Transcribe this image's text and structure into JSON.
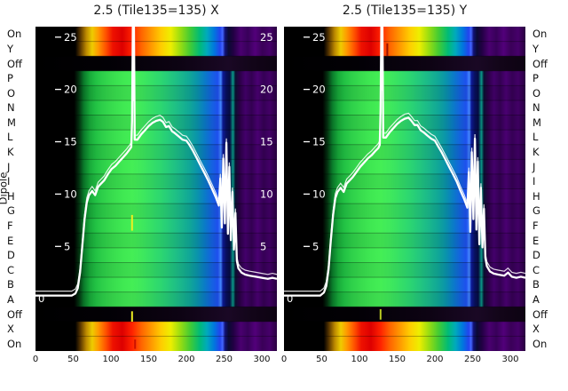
{
  "chart_data": {
    "type": "heatmap",
    "ylabel": "Dipole",
    "background": "#000000",
    "curve_color": "#ffffff",
    "xlim": [
      0,
      320
    ],
    "ylim": [
      -5,
      26
    ],
    "x_ticks": [
      0,
      50,
      100,
      150,
      200,
      250,
      300
    ],
    "y_tick_values": [
      25,
      20,
      15,
      10,
      5
    ],
    "zero_label": "0",
    "rows": [
      {
        "label": "On",
        "band": "edge"
      },
      {
        "label": "Y",
        "band": "edge"
      },
      {
        "label": "Off",
        "band": "off"
      },
      {
        "label": "P",
        "band": "main"
      },
      {
        "label": "O",
        "band": "main"
      },
      {
        "label": "N",
        "band": "main"
      },
      {
        "label": "M",
        "band": "main"
      },
      {
        "label": "L",
        "band": "main"
      },
      {
        "label": "K",
        "band": "main"
      },
      {
        "label": "J",
        "band": "main"
      },
      {
        "label": "I",
        "band": "main"
      },
      {
        "label": "H",
        "band": "main"
      },
      {
        "label": "G",
        "band": "main"
      },
      {
        "label": "F",
        "band": "main"
      },
      {
        "label": "E",
        "band": "main"
      },
      {
        "label": "D",
        "band": "main"
      },
      {
        "label": "C",
        "band": "main"
      },
      {
        "label": "B",
        "band": "main"
      },
      {
        "label": "A",
        "band": "main"
      },
      {
        "label": "Off",
        "band": "off"
      },
      {
        "label": "X",
        "band": "edge"
      },
      {
        "label": "On",
        "band": "edge"
      }
    ],
    "gradients": {
      "edge": [
        [
          0,
          "#000000"
        ],
        [
          0.165,
          "#000000"
        ],
        [
          0.185,
          "#553300"
        ],
        [
          0.21,
          "#bb8800"
        ],
        [
          0.235,
          "#eecc00"
        ],
        [
          0.26,
          "#ff9900"
        ],
        [
          0.29,
          "#ff5500"
        ],
        [
          0.32,
          "#ee1100"
        ],
        [
          0.36,
          "#dd0000"
        ],
        [
          0.4,
          "#ff2200"
        ],
        [
          0.44,
          "#ff6600"
        ],
        [
          0.48,
          "#ff9900"
        ],
        [
          0.52,
          "#ffcc00"
        ],
        [
          0.56,
          "#eeee00"
        ],
        [
          0.6,
          "#99dd11"
        ],
        [
          0.64,
          "#44cc33"
        ],
        [
          0.68,
          "#00bb77"
        ],
        [
          0.71,
          "#00aabb"
        ],
        [
          0.74,
          "#0077dd"
        ],
        [
          0.765,
          "#2244ee"
        ],
        [
          0.775,
          "#4466ff"
        ],
        [
          0.785,
          "#111177"
        ],
        [
          0.8,
          "#0a0a33"
        ],
        [
          0.82,
          "#220044"
        ],
        [
          0.85,
          "#4a0070"
        ],
        [
          0.88,
          "#38005a"
        ],
        [
          0.91,
          "#52007a"
        ],
        [
          0.94,
          "#3a0058"
        ],
        [
          0.97,
          "#46006a"
        ],
        [
          1,
          "#2a0040"
        ]
      ],
      "main": [
        [
          0,
          "#000000"
        ],
        [
          0.16,
          "#000000"
        ],
        [
          0.18,
          "#043311"
        ],
        [
          0.2,
          "#0a7a2a"
        ],
        [
          0.225,
          "#18aa3a"
        ],
        [
          0.25,
          "#22c244"
        ],
        [
          0.28,
          "#2ed04a"
        ],
        [
          0.32,
          "#38dd4e"
        ],
        [
          0.36,
          "#3fe852"
        ],
        [
          0.4,
          "#44ee55"
        ],
        [
          0.44,
          "#3fe95c"
        ],
        [
          0.48,
          "#35e066"
        ],
        [
          0.52,
          "#2cd671"
        ],
        [
          0.56,
          "#23c87e"
        ],
        [
          0.6,
          "#1ab88b"
        ],
        [
          0.64,
          "#10a698"
        ],
        [
          0.67,
          "#0a94ab"
        ],
        [
          0.7,
          "#0a7cc6"
        ],
        [
          0.73,
          "#1463e0"
        ],
        [
          0.755,
          "#1e50ee"
        ],
        [
          0.768,
          "#4488ff"
        ],
        [
          0.776,
          "#0d1a99"
        ],
        [
          0.79,
          "#081060"
        ],
        [
          0.805,
          "#060b44"
        ],
        [
          0.818,
          "#0a9988"
        ],
        [
          0.828,
          "#0a1133"
        ],
        [
          0.845,
          "#2a0045"
        ],
        [
          0.87,
          "#43006b"
        ],
        [
          0.895,
          "#330052"
        ],
        [
          0.92,
          "#4a0072"
        ],
        [
          0.945,
          "#360056"
        ],
        [
          0.97,
          "#420066"
        ],
        [
          1,
          "#2a0042"
        ]
      ],
      "off": [
        [
          0,
          "#000000"
        ],
        [
          0.3,
          "#020005"
        ],
        [
          0.6,
          "#0d0313"
        ],
        [
          0.8,
          "#1a0825"
        ],
        [
          0.9,
          "#120518"
        ],
        [
          1,
          "#0d0312"
        ]
      ]
    },
    "panels": [
      {
        "title": "2.5 (Tile135=135) X",
        "right_axis_labels": true,
        "marks": [
          {
            "x": 128,
            "v1": 6.5,
            "v2": 8,
            "color": "#eeee22"
          },
          {
            "x": 128,
            "v1": -2.2,
            "v2": -1.2,
            "color": "#eeee22"
          },
          {
            "x": 132,
            "v1": -4.8,
            "v2": -3.9,
            "color": "#cc1100"
          }
        ],
        "curve": [
          [
            0,
            0.3
          ],
          [
            30,
            0.3
          ],
          [
            48,
            0.3
          ],
          [
            53,
            0.5
          ],
          [
            56,
            1
          ],
          [
            59,
            2.5
          ],
          [
            62,
            5
          ],
          [
            65,
            7.6
          ],
          [
            68,
            9.2
          ],
          [
            71,
            9.9
          ],
          [
            75,
            10.3
          ],
          [
            79,
            9.9
          ],
          [
            83,
            10.7
          ],
          [
            87,
            11.0
          ],
          [
            91,
            11.3
          ],
          [
            96,
            11.9
          ],
          [
            101,
            12.4
          ],
          [
            106,
            12.7
          ],
          [
            111,
            13.1
          ],
          [
            116,
            13.5
          ],
          [
            121,
            13.9
          ],
          [
            125,
            14.3
          ],
          [
            127,
            14.5
          ],
          [
            128,
            17
          ],
          [
            129,
            26.5
          ],
          [
            130,
            19
          ],
          [
            130.5,
            26.5
          ],
          [
            131.5,
            15.2
          ],
          [
            135,
            15.2
          ],
          [
            140,
            15.7
          ],
          [
            145,
            16.1
          ],
          [
            150,
            16.5
          ],
          [
            155,
            16.8
          ],
          [
            160,
            17.0
          ],
          [
            165,
            17.1
          ],
          [
            169,
            16.9
          ],
          [
            173,
            16.4
          ],
          [
            177,
            16.5
          ],
          [
            181,
            16.0
          ],
          [
            185,
            15.8
          ],
          [
            190,
            15.5
          ],
          [
            195,
            15.2
          ],
          [
            200,
            15.1
          ],
          [
            204,
            14.7
          ],
          [
            209,
            14.1
          ],
          [
            214,
            13.4
          ],
          [
            219,
            12.7
          ],
          [
            224,
            12.0
          ],
          [
            229,
            11.3
          ],
          [
            234,
            10.5
          ],
          [
            239,
            9.7
          ],
          [
            243,
            8.9
          ],
          [
            245,
            11.5
          ],
          [
            247,
            6.8
          ],
          [
            249,
            13.4
          ],
          [
            251,
            7.2
          ],
          [
            253,
            14.9
          ],
          [
            255,
            6.2
          ],
          [
            257,
            12.6
          ],
          [
            259,
            5.6
          ],
          [
            261,
            10.2
          ],
          [
            263,
            4.7
          ],
          [
            265,
            8.2
          ],
          [
            267,
            3.6
          ],
          [
            269,
            2.9
          ],
          [
            273,
            2.5
          ],
          [
            278,
            2.3
          ],
          [
            284,
            2.2
          ],
          [
            292,
            2.1
          ],
          [
            300,
            2.0
          ],
          [
            308,
            1.9
          ],
          [
            314,
            2.0
          ],
          [
            320,
            1.9
          ]
        ]
      },
      {
        "title": "2.5 (Tile135=135) Y",
        "right_axis_labels": false,
        "marks": [
          {
            "x": 137,
            "v1": 23.2,
            "v2": 24.4,
            "color": "#991100"
          },
          {
            "x": 128,
            "v1": -2.0,
            "v2": -1.0,
            "color": "#bbcc22"
          }
        ],
        "curve": [
          [
            0,
            0.3
          ],
          [
            30,
            0.3
          ],
          [
            48,
            0.3
          ],
          [
            53,
            0.6
          ],
          [
            56,
            1.2
          ],
          [
            59,
            2.8
          ],
          [
            62,
            5.5
          ],
          [
            65,
            8.0
          ],
          [
            68,
            9.6
          ],
          [
            71,
            10.2
          ],
          [
            75,
            10.6
          ],
          [
            79,
            10.2
          ],
          [
            83,
            11.0
          ],
          [
            87,
            11.3
          ],
          [
            91,
            11.6
          ],
          [
            96,
            12.1
          ],
          [
            101,
            12.6
          ],
          [
            106,
            13.0
          ],
          [
            111,
            13.4
          ],
          [
            116,
            13.7
          ],
          [
            121,
            14.1
          ],
          [
            125,
            14.4
          ],
          [
            127,
            14.7
          ],
          [
            128,
            18
          ],
          [
            129,
            26.5
          ],
          [
            130,
            20
          ],
          [
            130.5,
            26.5
          ],
          [
            131.5,
            15.4
          ],
          [
            135,
            15.4
          ],
          [
            140,
            15.9
          ],
          [
            145,
            16.3
          ],
          [
            150,
            16.7
          ],
          [
            155,
            17.0
          ],
          [
            160,
            17.2
          ],
          [
            165,
            17.3
          ],
          [
            169,
            17.0
          ],
          [
            173,
            16.6
          ],
          [
            177,
            16.6
          ],
          [
            181,
            16.1
          ],
          [
            185,
            15.9
          ],
          [
            190,
            15.6
          ],
          [
            195,
            15.3
          ],
          [
            200,
            15.1
          ],
          [
            204,
            14.6
          ],
          [
            209,
            14.0
          ],
          [
            214,
            13.3
          ],
          [
            219,
            12.6
          ],
          [
            224,
            11.9
          ],
          [
            229,
            11.2
          ],
          [
            234,
            10.3
          ],
          [
            239,
            9.5
          ],
          [
            243,
            8.7
          ],
          [
            245,
            12.1
          ],
          [
            247,
            6.4
          ],
          [
            249,
            14.0
          ],
          [
            251,
            7.6
          ],
          [
            253,
            15.3
          ],
          [
            255,
            6.6
          ],
          [
            257,
            13.1
          ],
          [
            259,
            5.2
          ],
          [
            261,
            10.6
          ],
          [
            263,
            4.9
          ],
          [
            265,
            8.6
          ],
          [
            267,
            3.9
          ],
          [
            269,
            3.1
          ],
          [
            273,
            2.6
          ],
          [
            278,
            2.4
          ],
          [
            284,
            2.3
          ],
          [
            292,
            2.2
          ],
          [
            297,
            2.5
          ],
          [
            302,
            2.1
          ],
          [
            308,
            2.0
          ],
          [
            314,
            2.1
          ],
          [
            320,
            2.0
          ]
        ]
      }
    ]
  }
}
